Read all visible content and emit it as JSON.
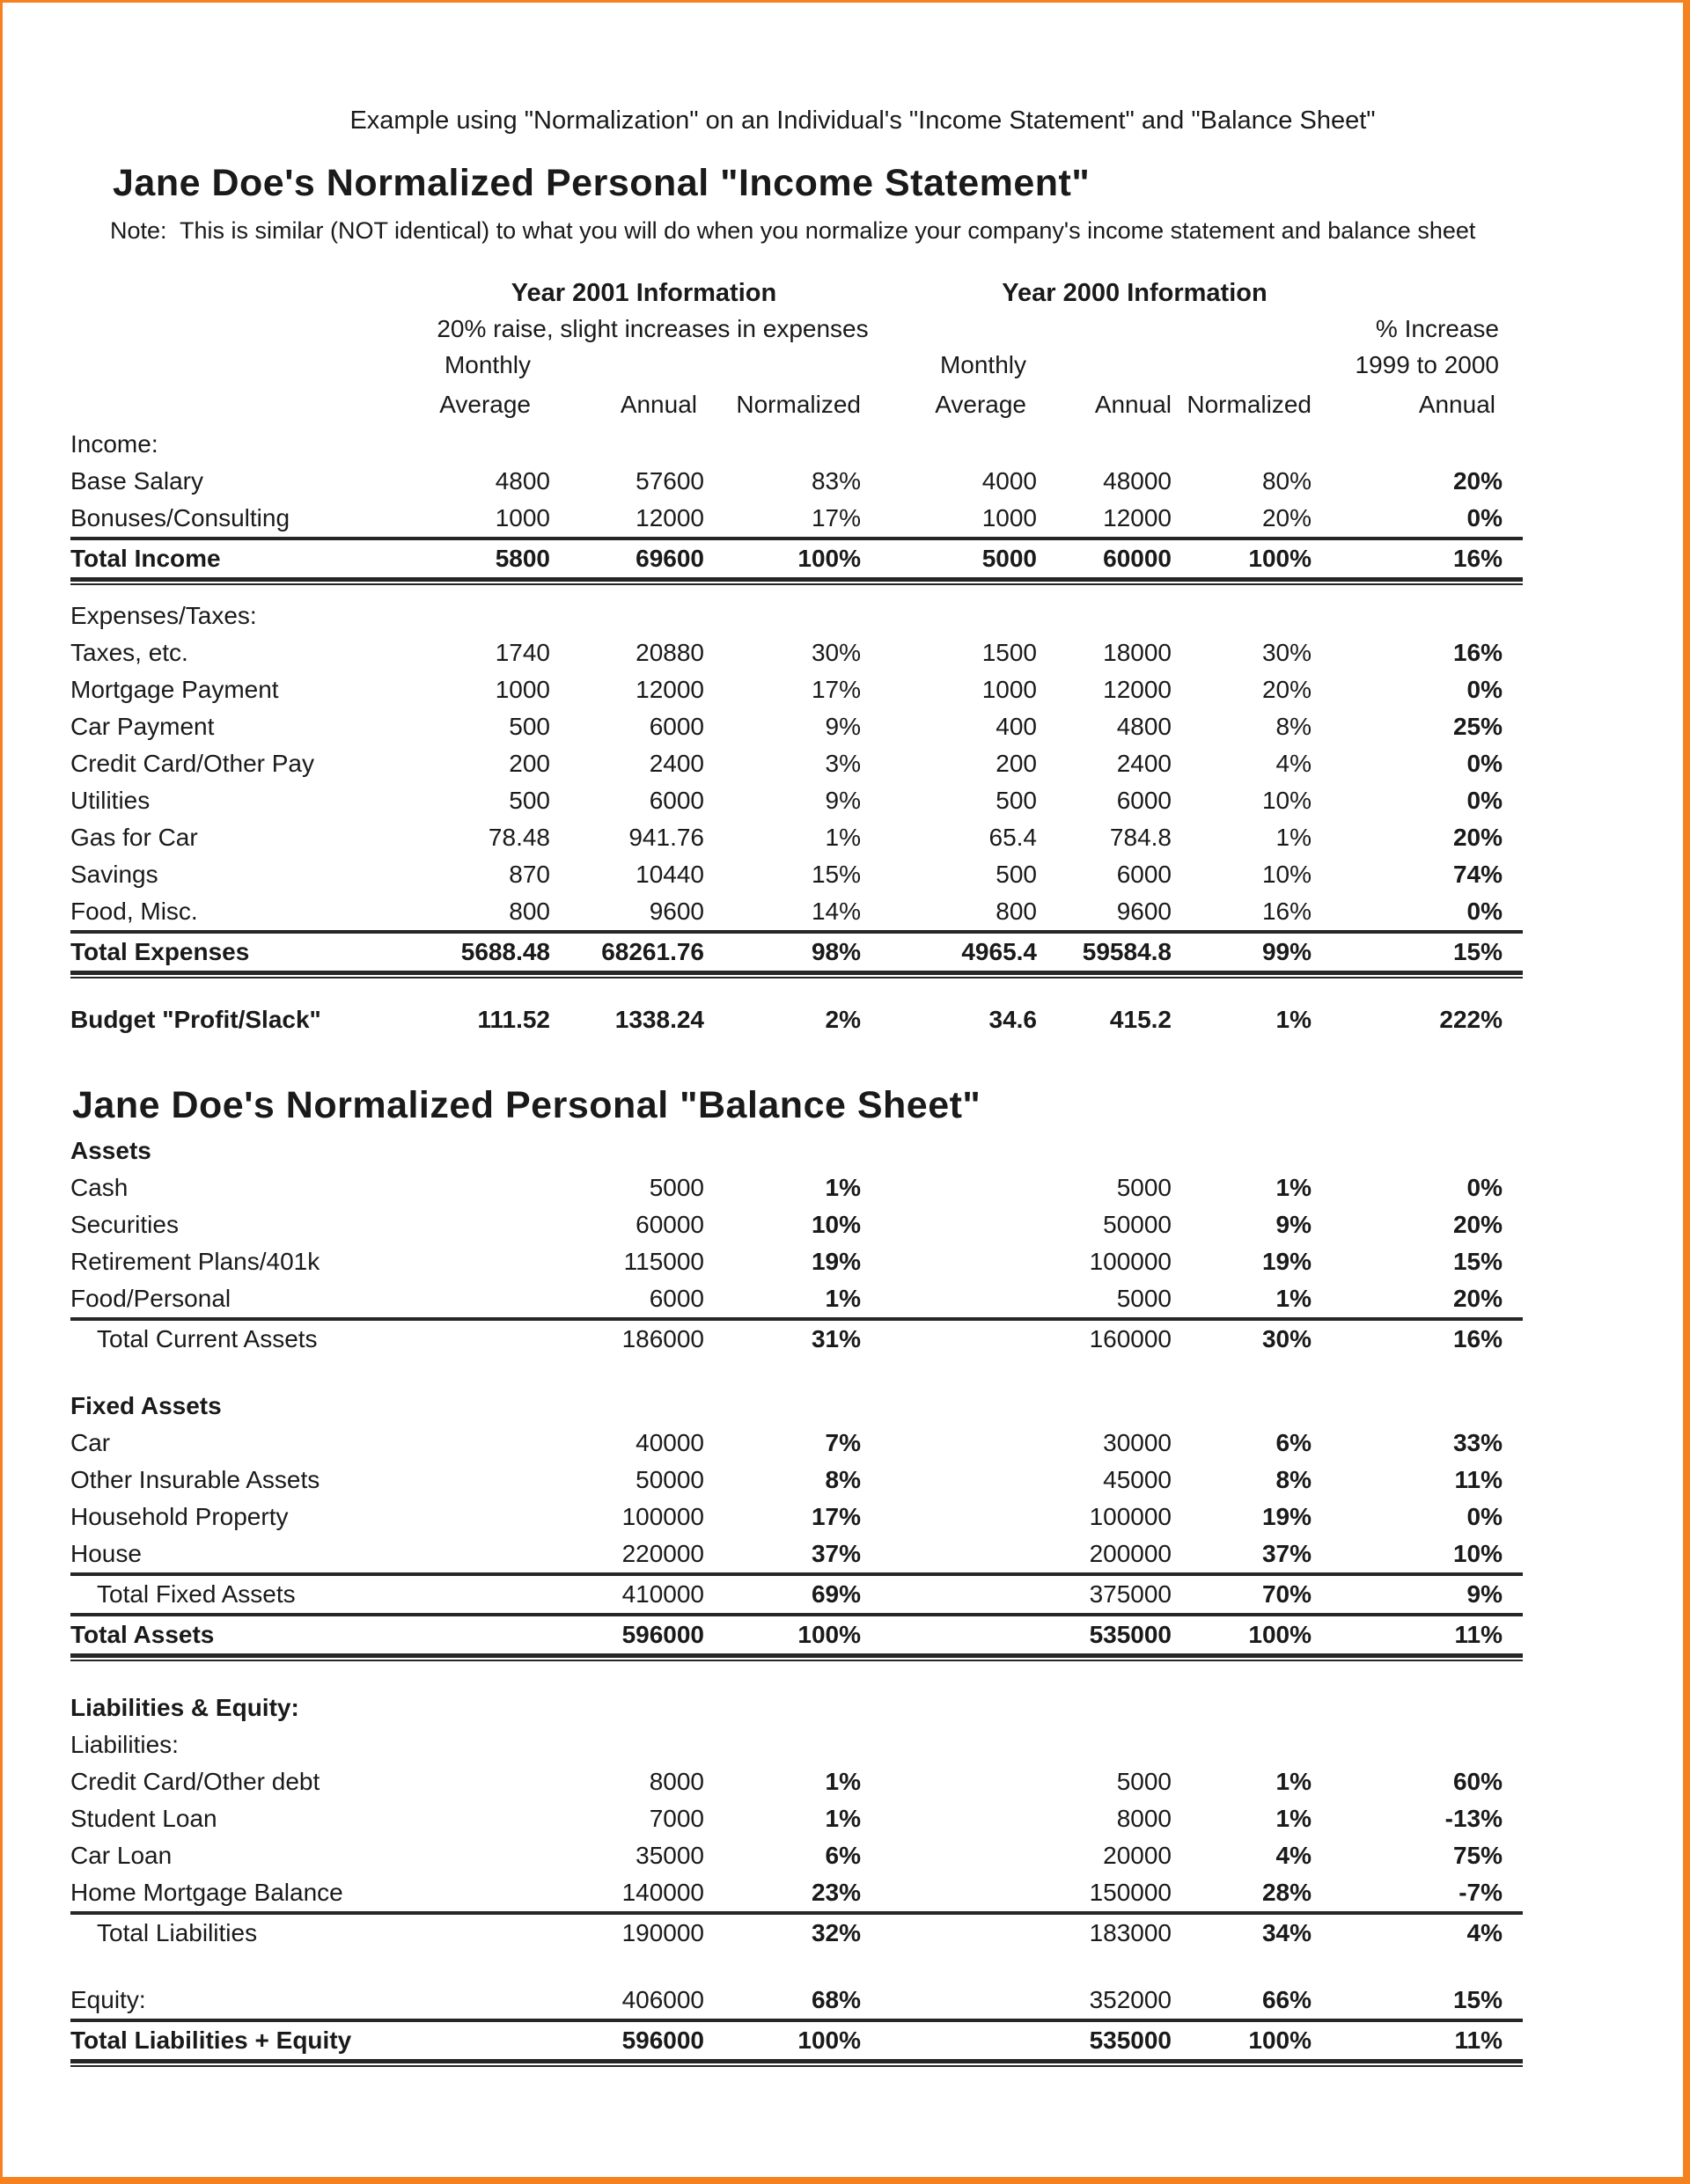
{
  "page": {
    "caption": "Example using \"Normalization\" on an Individual's \"Income Statement\" and \"Balance Sheet\"",
    "border_color": "#f5821f",
    "text_color": "#1a1a1a"
  },
  "income_statement": {
    "title": "Jane Doe's Normalized Personal \"Income Statement\"",
    "note": "Note:  This is similar (NOT identical) to what you will do when you normalize your company's income statement and balance sheet",
    "header": {
      "year2001": "Year 2001 Information",
      "year2000": "Year 2000 Information",
      "subnote": "20% raise, slight increases in expenses",
      "pct_increase_line1": "% Increase",
      "pct_increase_line2": "1999 to 2000",
      "monthly_left": "Monthly",
      "monthly_right": "Monthly",
      "columns": [
        "Average",
        "Annual",
        "Normalized",
        "Average",
        "Annual",
        "Normalized",
        "Annual"
      ]
    },
    "rows": [
      {
        "label": "Income:",
        "cells": [
          "",
          "",
          "",
          "",
          "",
          "",
          ""
        ]
      },
      {
        "label": "Base Salary",
        "cells": [
          "4800",
          "57600",
          "83%",
          "4000",
          "48000",
          "80%",
          "20%"
        ],
        "bold_cols": [
          6
        ]
      },
      {
        "label": "Bonuses/Consulting",
        "cells": [
          "1000",
          "12000",
          "17%",
          "1000",
          "12000",
          "20%",
          "0%"
        ],
        "bold_cols": [
          6
        ]
      },
      {
        "label": "Total Income",
        "cells": [
          "5800",
          "69600",
          "100%",
          "5000",
          "60000",
          "100%",
          "16%"
        ],
        "bold": true,
        "rule_above": true,
        "heavy_below": true
      },
      {
        "spacer": 18
      },
      {
        "label": "Expenses/Taxes:",
        "cells": [
          "",
          "",
          "",
          "",
          "",
          "",
          ""
        ]
      },
      {
        "label": "Taxes, etc.",
        "cells": [
          "1740",
          "20880",
          "30%",
          "1500",
          "18000",
          "30%",
          "16%"
        ],
        "bold_cols": [
          6
        ]
      },
      {
        "label": "Mortgage Payment",
        "cells": [
          "1000",
          "12000",
          "17%",
          "1000",
          "12000",
          "20%",
          "0%"
        ],
        "bold_cols": [
          6
        ]
      },
      {
        "label": "Car Payment",
        "cells": [
          "500",
          "6000",
          "9%",
          "400",
          "4800",
          "8%",
          "25%"
        ],
        "bold_cols": [
          6
        ]
      },
      {
        "label": "Credit Card/Other Pay",
        "cells": [
          "200",
          "2400",
          "3%",
          "200",
          "2400",
          "4%",
          "0%"
        ],
        "bold_cols": [
          6
        ]
      },
      {
        "label": "Utilities",
        "cells": [
          "500",
          "6000",
          "9%",
          "500",
          "6000",
          "10%",
          "0%"
        ],
        "bold_cols": [
          6
        ]
      },
      {
        "label": "Gas for Car",
        "cells": [
          "78.48",
          "941.76",
          "1%",
          "65.4",
          "784.8",
          "1%",
          "20%"
        ],
        "bold_cols": [
          6
        ]
      },
      {
        "label": "Savings",
        "cells": [
          "870",
          "10440",
          "15%",
          "500",
          "6000",
          "10%",
          "74%"
        ],
        "bold_cols": [
          6
        ]
      },
      {
        "label": "Food, Misc.",
        "cells": [
          "800",
          "9600",
          "14%",
          "800",
          "9600",
          "16%",
          "0%"
        ],
        "bold_cols": [
          6
        ]
      },
      {
        "label": "Total Expenses",
        "cells": [
          "5688.48",
          "68261.76",
          "98%",
          "4965.4",
          "59584.8",
          "99%",
          "15%"
        ],
        "bold": true,
        "rule_above": true,
        "heavy_below": true
      },
      {
        "spacer": 30
      },
      {
        "label": "Budget \"Profit/Slack\"",
        "cells": [
          "111.52",
          "1338.24",
          "2%",
          "34.6",
          "415.2",
          "1%",
          "222%"
        ],
        "bold": true
      }
    ]
  },
  "balance_sheet": {
    "title": "Jane Doe's Normalized Personal \"Balance Sheet\"",
    "rows": [
      {
        "label": "Assets",
        "bold": true,
        "cells": [
          "",
          "",
          "",
          "",
          "",
          "",
          ""
        ]
      },
      {
        "label": "Cash",
        "cells": [
          "",
          "5000",
          "1%",
          "",
          "5000",
          "1%",
          "0%"
        ],
        "bold_cols": [
          2,
          5,
          6
        ]
      },
      {
        "label": "Securities",
        "cells": [
          "",
          "60000",
          "10%",
          "",
          "50000",
          "9%",
          "20%"
        ],
        "bold_cols": [
          2,
          5,
          6
        ]
      },
      {
        "label": "Retirement Plans/401k",
        "cells": [
          "",
          "115000",
          "19%",
          "",
          "100000",
          "19%",
          "15%"
        ],
        "bold_cols": [
          2,
          5,
          6
        ]
      },
      {
        "label": "Food/Personal",
        "cells": [
          "",
          "6000",
          "1%",
          "",
          "5000",
          "1%",
          "20%"
        ],
        "bold_cols": [
          2,
          5,
          6
        ]
      },
      {
        "label": "Total Current Assets",
        "indent": true,
        "rule_above": true,
        "cells": [
          "",
          "186000",
          "31%",
          "",
          "160000",
          "30%",
          "16%"
        ],
        "bold_cols": [
          2,
          5,
          6
        ]
      },
      {
        "spacer": 34
      },
      {
        "label": "Fixed Assets",
        "bold": true,
        "cells": [
          "",
          "",
          "",
          "",
          "",
          "",
          ""
        ]
      },
      {
        "label": "Car",
        "cells": [
          "",
          "40000",
          "7%",
          "",
          "30000",
          "6%",
          "33%"
        ],
        "bold_cols": [
          2,
          5,
          6
        ]
      },
      {
        "label": "Other Insurable Assets",
        "cells": [
          "",
          "50000",
          "8%",
          "",
          "45000",
          "8%",
          "11%"
        ],
        "bold_cols": [
          2,
          5,
          6
        ]
      },
      {
        "label": "Household Property",
        "cells": [
          "",
          "100000",
          "17%",
          "",
          "100000",
          "19%",
          "0%"
        ],
        "bold_cols": [
          2,
          5,
          6
        ]
      },
      {
        "label": "House",
        "cells": [
          "",
          "220000",
          "37%",
          "",
          "200000",
          "37%",
          "10%"
        ],
        "bold_cols": [
          2,
          5,
          6
        ]
      },
      {
        "label": "Total Fixed Assets",
        "indent": true,
        "rule_above": true,
        "rule_below": true,
        "cells": [
          "",
          "410000",
          "69%",
          "",
          "375000",
          "70%",
          "9%"
        ],
        "bold_cols": [
          2,
          5,
          6
        ]
      },
      {
        "label": "Total Assets",
        "bold": true,
        "heavy_below": true,
        "cells": [
          "",
          "596000",
          "100%",
          "",
          "535000",
          "100%",
          "11%"
        ]
      },
      {
        "spacer": 36
      },
      {
        "label": "Liabilities & Equity:",
        "bold": true,
        "cells": [
          "",
          "",
          "",
          "",
          "",
          "",
          ""
        ]
      },
      {
        "label": "Liabilities:",
        "cells": [
          "",
          "",
          "",
          "",
          "",
          "",
          ""
        ]
      },
      {
        "label": "Credit Card/Other debt",
        "cells": [
          "",
          "8000",
          "1%",
          "",
          "5000",
          "1%",
          "60%"
        ],
        "bold_cols": [
          2,
          5,
          6
        ]
      },
      {
        "label": "Student Loan",
        "cells": [
          "",
          "7000",
          "1%",
          "",
          "8000",
          "1%",
          "-13%"
        ],
        "bold_cols": [
          2,
          5,
          6
        ]
      },
      {
        "label": "Car Loan",
        "cells": [
          "",
          "35000",
          "6%",
          "",
          "20000",
          "4%",
          "75%"
        ],
        "bold_cols": [
          2,
          5,
          6
        ]
      },
      {
        "label": "Home Mortgage Balance",
        "rule_below": true,
        "cells": [
          "",
          "140000",
          "23%",
          "",
          "150000",
          "28%",
          "-7%"
        ],
        "bold_cols": [
          2,
          5,
          6
        ]
      },
      {
        "label": "Total Liabilities",
        "indent": true,
        "cells": [
          "",
          "190000",
          "32%",
          "",
          "183000",
          "34%",
          "4%"
        ],
        "bold_cols": [
          2,
          5,
          6
        ]
      },
      {
        "spacer": 34
      },
      {
        "label": "Equity:",
        "rule_below": true,
        "cells": [
          "",
          "406000",
          "68%",
          "",
          "352000",
          "66%",
          "15%"
        ],
        "bold_cols": [
          2,
          5,
          6
        ]
      },
      {
        "label": "Total Liabilities + Equity",
        "bold": true,
        "heavy_below": true,
        "cells": [
          "",
          "596000",
          "100%",
          "",
          "535000",
          "100%",
          "11%"
        ]
      }
    ]
  }
}
